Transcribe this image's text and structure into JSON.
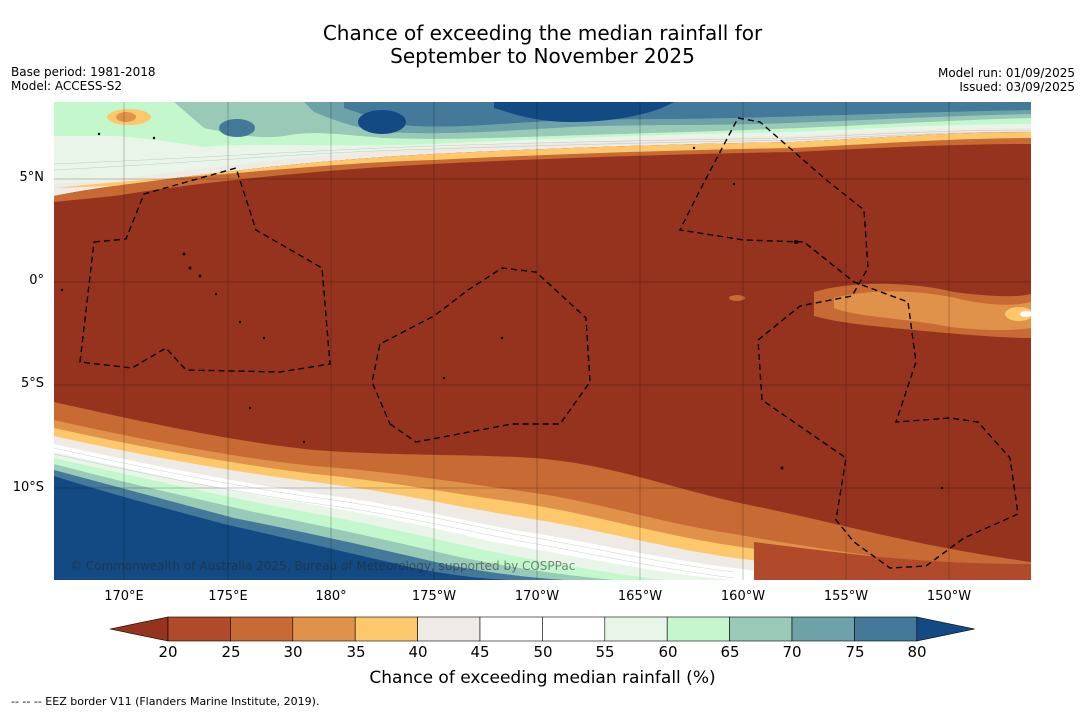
{
  "title": {
    "line1": "Chance of exceeding the median rainfall for",
    "line2": "September to November 2025"
  },
  "meta_left": {
    "base_period": "Base period: 1981-2018",
    "model": "Model: ACCESS-S2"
  },
  "meta_right": {
    "model_run": "Model run: 01/09/2025",
    "issued": "Issued: 03/09/2025"
  },
  "map": {
    "lat_labels": [
      "5°N",
      "0°",
      "5°S",
      "10°S"
    ],
    "lon_labels": [
      "170°E",
      "175°E",
      "180°",
      "175°W",
      "170°W",
      "165°W",
      "160°W",
      "155°W",
      "150°W"
    ],
    "copyright": "© Commonwealth of Australia 2025, Bureau of Meteorology, supported by COSPPac",
    "colors": {
      "very_dry": "#96331f",
      "dry": "#c3602f",
      "neutral": "#ffffff",
      "wet": "#45799a",
      "very_wet": "#134a83"
    }
  },
  "colorbar": {
    "ticks": [
      "20",
      "25",
      "30",
      "35",
      "40",
      "45",
      "50",
      "55",
      "60",
      "65",
      "70",
      "75",
      "80"
    ],
    "colors": [
      "#96331f",
      "#b04a2b",
      "#c86a34",
      "#e0924a",
      "#fdc86c",
      "#eeeae6",
      "#ffffff",
      "#ffffff",
      "#e8f5e8",
      "#c4f7cc",
      "#98cab7",
      "#6ea2a9",
      "#45799a",
      "#134a83"
    ],
    "title": "Chance of exceeding median rainfall (%)"
  },
  "footnote": "--  --  -- EEZ border V11 (Flanders Marine Institute, 2019)."
}
